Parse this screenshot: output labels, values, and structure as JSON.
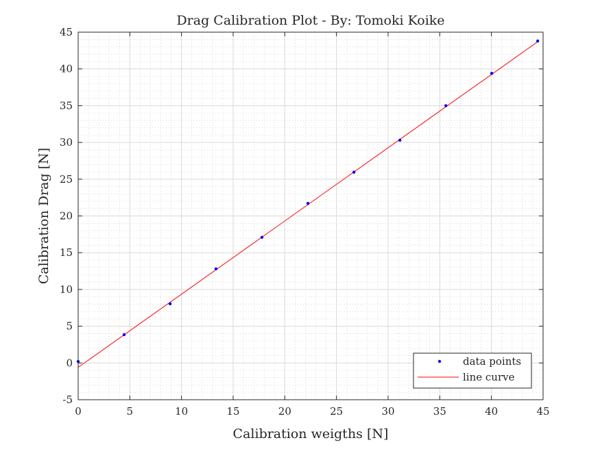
{
  "chart_data": {
    "type": "scatter",
    "title": "Drag Calibration Plot - By: Tomoki Koike",
    "xlabel": "Calibration weigths [N]",
    "ylabel": "Calibration Drag [N]",
    "xlim": [
      0,
      45
    ],
    "ylim": [
      -5,
      45
    ],
    "xticks": [
      0,
      5,
      10,
      15,
      20,
      25,
      30,
      35,
      40,
      45
    ],
    "yticks": [
      -5,
      0,
      5,
      10,
      15,
      20,
      25,
      30,
      35,
      40,
      45
    ],
    "xtick_labels": [
      "0",
      "5",
      "10",
      "15",
      "20",
      "25",
      "30",
      "35",
      "40",
      "45"
    ],
    "ytick_labels": [
      "-5",
      "0",
      "5",
      "10",
      "15",
      "20",
      "25",
      "30",
      "35",
      "40",
      "45"
    ],
    "grid": true,
    "minor_grid": true,
    "legend_position": "bottom-right",
    "series": [
      {
        "name": "data points",
        "type": "scatter",
        "color": "#0000ff",
        "x": [
          0,
          4.45,
          8.9,
          13.34,
          17.79,
          22.24,
          26.69,
          31.14,
          35.59,
          40.03,
          44.48
        ],
        "y": [
          0.2,
          3.85,
          8.05,
          12.8,
          17.1,
          21.7,
          25.95,
          30.3,
          35.0,
          39.4,
          43.8
        ]
      },
      {
        "name": "line curve",
        "type": "line",
        "color": "#ff0000",
        "x": [
          0,
          44.48
        ],
        "y": [
          -0.6,
          43.7
        ]
      }
    ]
  }
}
